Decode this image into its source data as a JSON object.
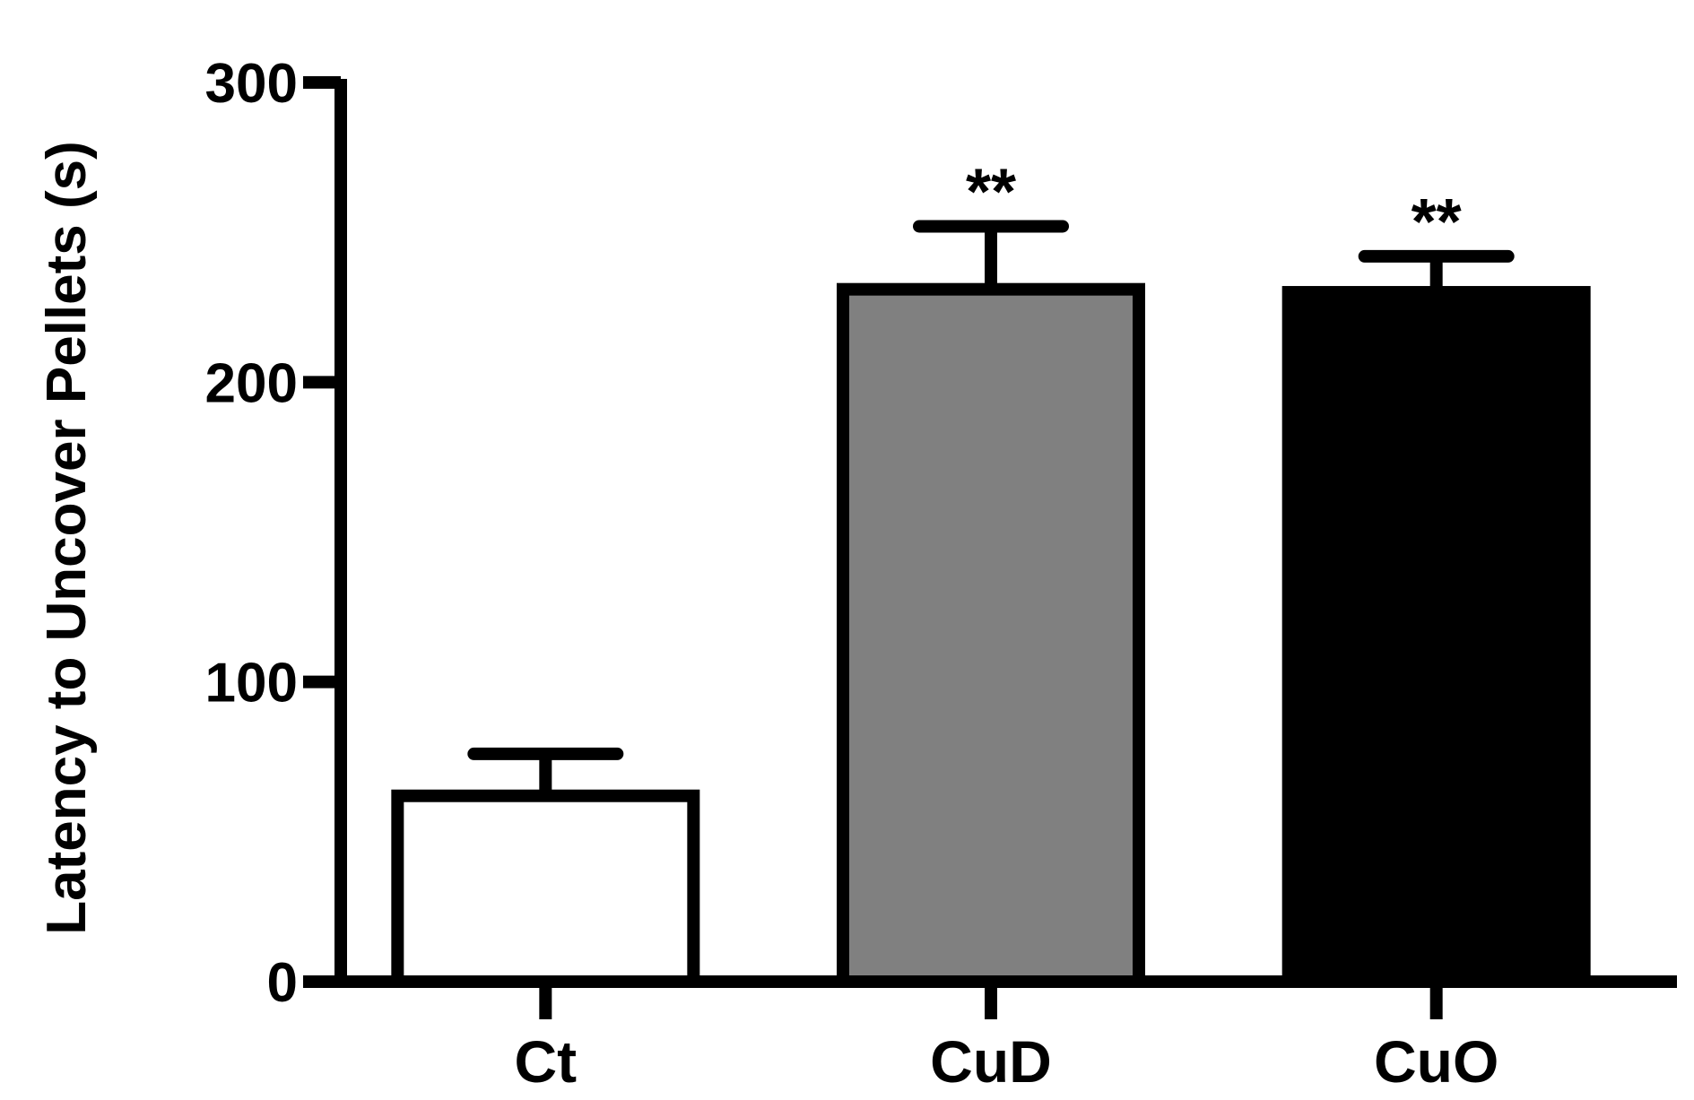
{
  "chart_data": {
    "type": "bar",
    "title": "",
    "xlabel": "",
    "ylabel": "Latency to Uncover Pellets (s)",
    "ylim": [
      0,
      300
    ],
    "yticks": [
      0,
      100,
      200,
      300
    ],
    "categories": [
      "Ct",
      "CuD",
      "CuO"
    ],
    "values": [
      62,
      231,
      230
    ],
    "error_upper": [
      76,
      252,
      242
    ],
    "significance": [
      "",
      "**",
      "**"
    ],
    "bar_fills": [
      "#ffffff",
      "#808080",
      "#000000"
    ],
    "grid": false,
    "legend": "none"
  }
}
